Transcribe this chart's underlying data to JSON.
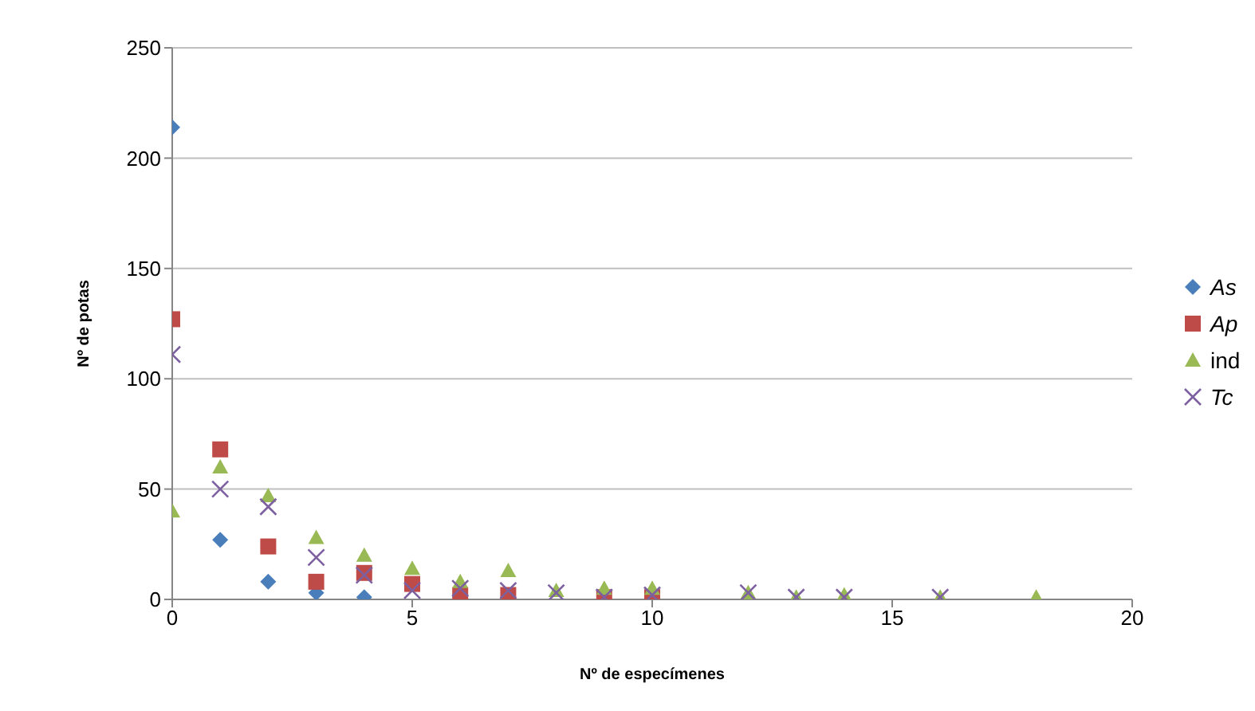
{
  "chart_data": {
    "type": "scatter",
    "xlabel": "Nº de especímenes",
    "ylabel": "Nº de potas",
    "xlim": [
      0,
      20
    ],
    "xticks": [
      0,
      5,
      10,
      15,
      20
    ],
    "ylim": [
      0,
      250
    ],
    "yticks": [
      0,
      50,
      100,
      150,
      200,
      250
    ],
    "grid": "y",
    "legend": "right",
    "series": [
      {
        "name": "As",
        "color": "#4a7ebb",
        "marker": "diamond",
        "x": [
          0,
          1,
          2,
          3,
          4
        ],
        "values": [
          214,
          27,
          8,
          3,
          1
        ]
      },
      {
        "name": "Ap",
        "color": "#be4b48",
        "marker": "square",
        "x": [
          0,
          1,
          2,
          3,
          4,
          5,
          6,
          7,
          8,
          9,
          10
        ],
        "values": [
          127,
          68,
          24,
          8,
          12,
          7,
          2,
          2,
          null,
          1,
          1
        ]
      },
      {
        "name": "ind",
        "color": "#98b954",
        "marker": "triangle",
        "x": [
          0,
          1,
          2,
          3,
          4,
          5,
          6,
          7,
          8,
          9,
          10,
          12,
          13,
          14,
          16,
          18
        ],
        "values": [
          40,
          60,
          47,
          28,
          20,
          14,
          8,
          13,
          4,
          5,
          5,
          3,
          1,
          2,
          1,
          1
        ]
      },
      {
        "name": "Tc",
        "color": "#7d60a0",
        "marker": "cross",
        "x": [
          0,
          1,
          2,
          3,
          4,
          5,
          6,
          7,
          8,
          9,
          10,
          12,
          13,
          14,
          16
        ],
        "values": [
          111,
          50,
          42,
          19,
          11,
          4,
          5,
          4,
          3,
          1,
          2,
          3,
          1,
          1,
          1
        ]
      }
    ]
  }
}
